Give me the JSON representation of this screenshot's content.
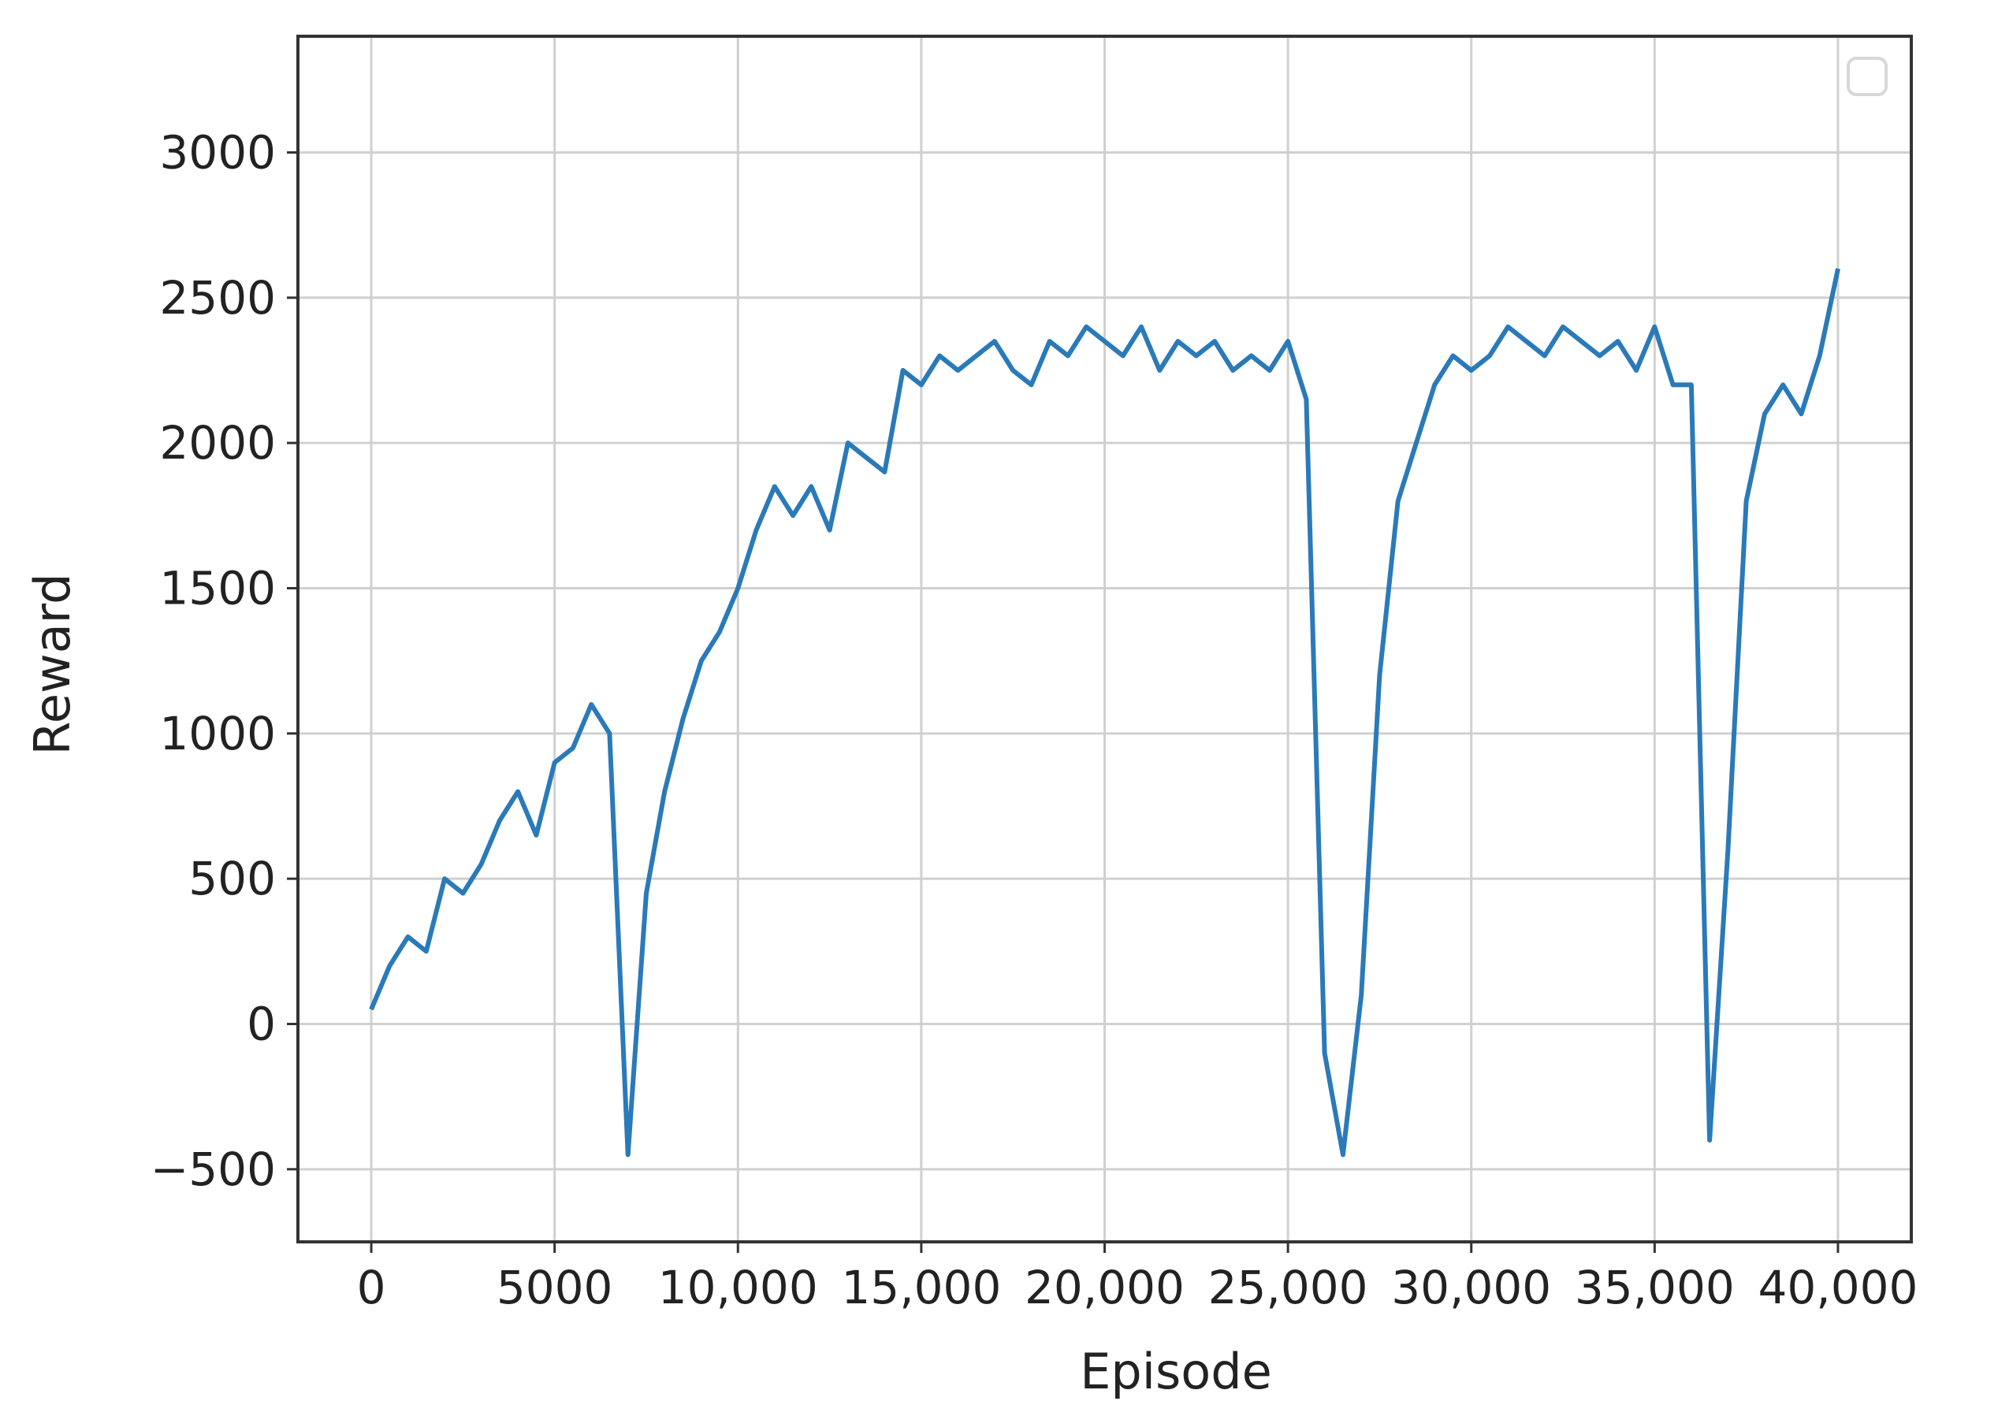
{
  "chart_data": {
    "type": "line",
    "title": "",
    "xlabel": "Episode",
    "ylabel": "Reward",
    "xlim": [
      -2000,
      42000
    ],
    "ylim": [
      -750,
      3400
    ],
    "grid": true,
    "legend": {
      "placement": "top-right",
      "entries": []
    },
    "xticks": [
      0,
      5000,
      10000,
      15000,
      20000,
      25000,
      30000,
      35000,
      40000
    ],
    "xtick_labels": [
      "0",
      "5000",
      "10,000",
      "15,000",
      "20,000",
      "25,000",
      "30,000",
      "35,000",
      "40,000"
    ],
    "yticks": [
      -500,
      0,
      500,
      1000,
      1500,
      2000,
      2500,
      3000
    ],
    "ytick_labels": [
      "−500",
      "0",
      "500",
      "1000",
      "1500",
      "2000",
      "2500",
      "3000"
    ],
    "series": [
      {
        "color": "#2a7ab9",
        "x": [
          0,
          500,
          1000,
          1500,
          2000,
          2500,
          3000,
          3500,
          4000,
          4500,
          5000,
          5500,
          6000,
          6500,
          7000,
          7500,
          8000,
          8500,
          9000,
          9500,
          10000,
          10500,
          11000,
          11500,
          12000,
          12500,
          13000,
          13500,
          14000,
          14500,
          15000,
          15500,
          16000,
          16500,
          17000,
          17500,
          18000,
          18500,
          19000,
          19500,
          20000,
          20500,
          21000,
          21500,
          22000,
          22500,
          23000,
          23500,
          24000,
          24500,
          25000,
          25500,
          26000,
          26500,
          27000,
          27500,
          28000,
          28500,
          29000,
          29500,
          30000,
          30500,
          31000,
          31500,
          32000,
          32500,
          33000,
          33500,
          34000,
          34500,
          35000,
          35500,
          36000,
          36500,
          37000,
          37500,
          38000,
          38500,
          39000,
          39500,
          40000
        ],
        "y": [
          50,
          200,
          300,
          250,
          500,
          450,
          550,
          700,
          800,
          650,
          900,
          950,
          1100,
          1000,
          -450,
          450,
          800,
          1050,
          1250,
          1350,
          1500,
          1700,
          1850,
          1750,
          1850,
          1700,
          2000,
          1950,
          1900,
          2250,
          2200,
          2300,
          2250,
          2300,
          2350,
          2250,
          2200,
          2350,
          2300,
          2400,
          2350,
          2300,
          2400,
          2250,
          2350,
          2300,
          2350,
          2250,
          2300,
          2250,
          2350,
          2150,
          -100,
          -450,
          100,
          1200,
          1800,
          2000,
          2200,
          2300,
          2250,
          2300,
          2400,
          2350,
          2300,
          2400,
          2350,
          2300,
          2350,
          2250,
          2400,
          2200,
          2200,
          -400,
          600,
          1800,
          2100,
          2200,
          2100,
          2300,
          2600
        ]
      }
    ]
  }
}
